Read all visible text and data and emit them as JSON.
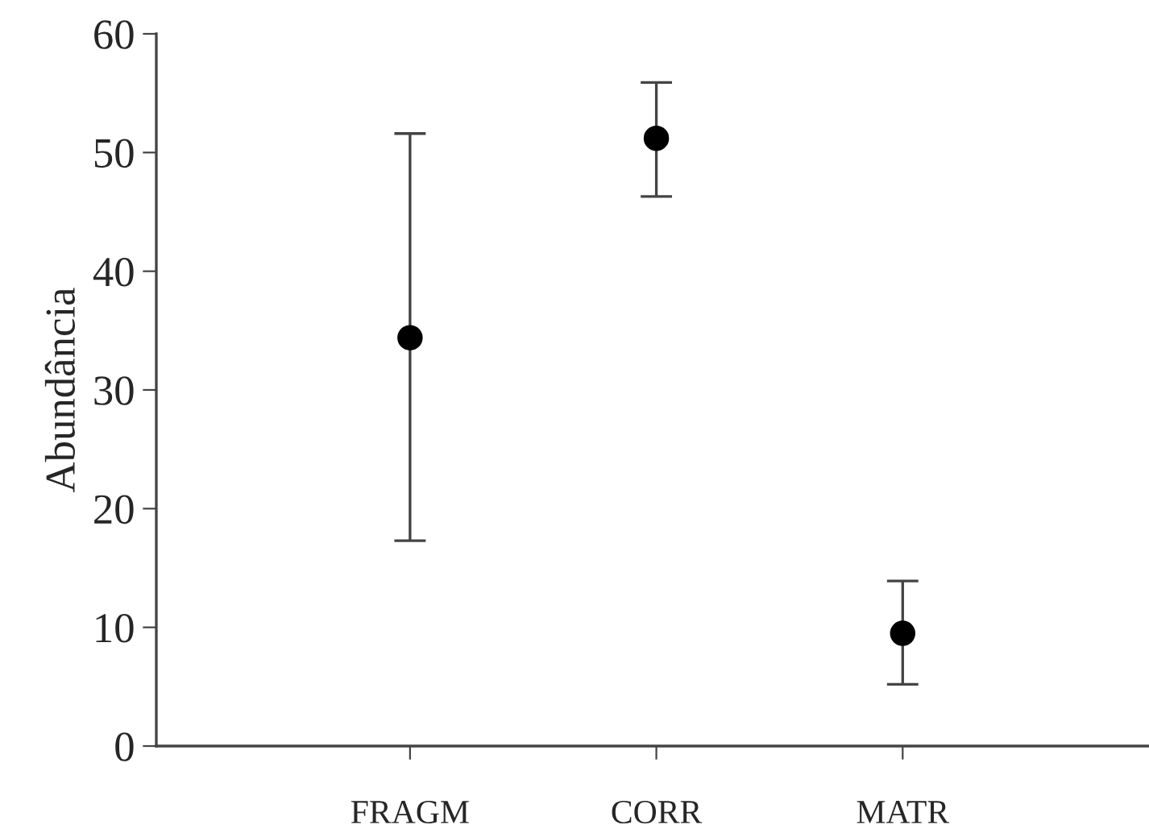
{
  "chart_data": {
    "type": "scatter",
    "ylabel": "Abundância",
    "categories": [
      "FRAGM",
      "CORR",
      "MATR"
    ],
    "values": [
      34.4,
      51.2,
      9.5
    ],
    "errors": [
      [
        17.3,
        51.6
      ],
      [
        46.3,
        55.9
      ],
      [
        5.2,
        13.9
      ]
    ],
    "color": "#000000",
    "marker": "circle",
    "ylim": [
      0,
      60
    ],
    "yticks": [
      0,
      10,
      20,
      30,
      40,
      50,
      60
    ],
    "grid": false,
    "legend": false
  }
}
